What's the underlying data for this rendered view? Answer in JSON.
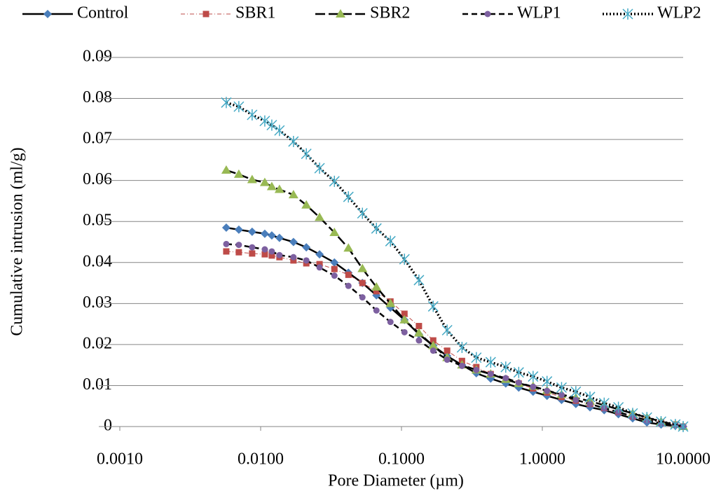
{
  "chart_data": {
    "type": "line",
    "x_label": "Pore Diameter (µm)",
    "y_label": "Cumulative intrusion (ml/g)",
    "x_log": true,
    "grid": true,
    "legend": "top",
    "xlim": [
      0.001,
      10
    ],
    "ylim": [
      0,
      0.09
    ],
    "xticks": [
      {
        "value": 0.001,
        "label": "0.0010"
      },
      {
        "value": 0.01,
        "label": "0.0100"
      },
      {
        "value": 0.1,
        "label": "0.1000"
      },
      {
        "value": 1,
        "label": "1.0000"
      },
      {
        "value": 10,
        "label": "10.0000"
      }
    ],
    "yticks": [
      0,
      0.01,
      0.02,
      0.03,
      0.04,
      0.05,
      0.06,
      0.07,
      0.08,
      0.09
    ],
    "x": [
      0.0057,
      0.007,
      0.0087,
      0.0107,
      0.012,
      0.0136,
      0.0171,
      0.0211,
      0.0262,
      0.0334,
      0.042,
      0.0528,
      0.0664,
      0.0835,
      0.105,
      0.133,
      0.168,
      0.211,
      0.269,
      0.34,
      0.43,
      0.55,
      0.68,
      0.86,
      1.08,
      1.37,
      1.73,
      2.18,
      2.75,
      3.47,
      4.38,
      5.53,
      6.97,
      8.8,
      10
    ],
    "series": [
      {
        "name": "Control",
        "color": "#4a7ebb",
        "marker": "diamond",
        "line_style": "solid",
        "values": [
          0.0485,
          0.048,
          0.0475,
          0.047,
          0.0466,
          0.046,
          0.045,
          0.0437,
          0.042,
          0.04,
          0.0375,
          0.035,
          0.032,
          0.029,
          0.026,
          0.0225,
          0.0197,
          0.0172,
          0.015,
          0.013,
          0.0117,
          0.0105,
          0.0095,
          0.0085,
          0.0075,
          0.0065,
          0.0055,
          0.0047,
          0.004,
          0.003,
          0.002,
          0.001,
          0.0005,
          0.0002,
          0
        ]
      },
      {
        "name": "SBR1",
        "color": "#be4b48",
        "marker": "square",
        "line_style": "dashdot",
        "values": [
          0.0427,
          0.0425,
          0.0422,
          0.042,
          0.0417,
          0.0413,
          0.0405,
          0.0398,
          0.0396,
          0.0384,
          0.037,
          0.035,
          0.033,
          0.0305,
          0.0275,
          0.0245,
          0.021,
          0.0185,
          0.016,
          0.0145,
          0.0128,
          0.0115,
          0.0105,
          0.0093,
          0.0083,
          0.0072,
          0.0063,
          0.0055,
          0.0045,
          0.0035,
          0.0025,
          0.0018,
          0.001,
          0.0005,
          0
        ]
      },
      {
        "name": "SBR2",
        "color": "#98b954",
        "marker": "triangle",
        "line_style": "longdash",
        "values": [
          0.0625,
          0.0615,
          0.0602,
          0.0595,
          0.0585,
          0.0578,
          0.0565,
          0.054,
          0.051,
          0.0473,
          0.0435,
          0.0385,
          0.034,
          0.03,
          0.026,
          0.0228,
          0.0197,
          0.0168,
          0.015,
          0.0138,
          0.0128,
          0.0115,
          0.0105,
          0.0098,
          0.0088,
          0.0078,
          0.007,
          0.0062,
          0.0052,
          0.0042,
          0.0032,
          0.0022,
          0.0012,
          0.0005,
          0
        ]
      },
      {
        "name": "WLP1",
        "color": "#7d60a0",
        "marker": "circle",
        "line_style": "dash",
        "values": [
          0.0445,
          0.0443,
          0.0437,
          0.0432,
          0.0427,
          0.0418,
          0.0413,
          0.0405,
          0.0388,
          0.0368,
          0.0343,
          0.0315,
          0.0283,
          0.0255,
          0.023,
          0.021,
          0.0185,
          0.0163,
          0.0148,
          0.0138,
          0.0128,
          0.0118,
          0.0107,
          0.0097,
          0.0087,
          0.0077,
          0.0065,
          0.0055,
          0.0045,
          0.0035,
          0.0025,
          0.0015,
          0.0008,
          0.0003,
          0
        ]
      },
      {
        "name": "WLP2",
        "color": "#46aac5",
        "marker": "star",
        "line_style": "dot",
        "values": [
          0.079,
          0.078,
          0.076,
          0.0745,
          0.0735,
          0.0722,
          0.0695,
          0.0665,
          0.063,
          0.0598,
          0.056,
          0.052,
          0.0483,
          0.0452,
          0.0408,
          0.0357,
          0.0293,
          0.0235,
          0.0193,
          0.0168,
          0.0157,
          0.0145,
          0.0132,
          0.0122,
          0.011,
          0.0095,
          0.0085,
          0.0072,
          0.0057,
          0.0047,
          0.0032,
          0.0022,
          0.0012,
          0.0005,
          0
        ]
      }
    ]
  }
}
